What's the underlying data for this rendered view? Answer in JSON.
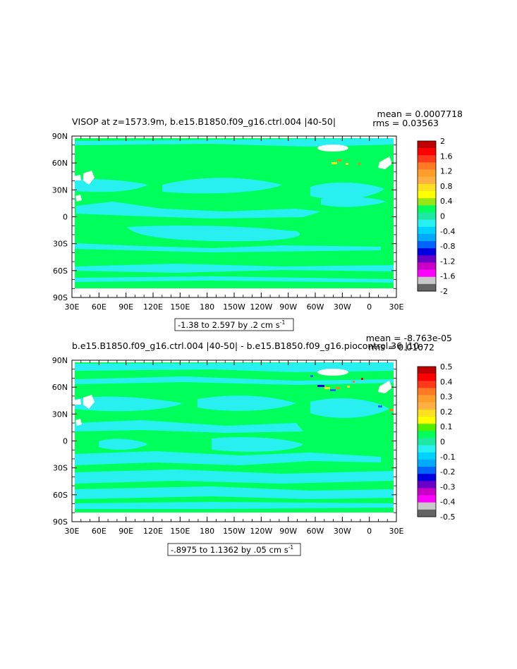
{
  "chart_data": [
    {
      "type": "heatmap",
      "title": "VISOP at z=1573.9m, b.e15.B1850.f09_g16.ctrl.004 |40-50|",
      "stats": {
        "mean": "mean = 0.0007718",
        "rms": "rms = 0.03563"
      },
      "subtitle": "-1.38 to 2.597 by .2 cm s-1",
      "subtitle_main": "-1.38 to 2.597 by .2 cm s",
      "subtitle_sup": "-1",
      "x_ticks": [
        "30E",
        "60E",
        "90E",
        "120E",
        "150E",
        "180",
        "150W",
        "120W",
        "90W",
        "60W",
        "30W",
        "0",
        "30E"
      ],
      "y_ticks": [
        "90N",
        "60N",
        "30N",
        "0",
        "30S",
        "60S",
        "90S"
      ],
      "xlim_deg_east": [
        30,
        390
      ],
      "ylim_deg_north": [
        -90,
        90
      ],
      "colorbar": {
        "labels": [
          "2",
          "1.6",
          "1.2",
          "0.8",
          "0.4",
          "0",
          "-0.4",
          "-0.8",
          "-1.2",
          "-1.6",
          "-2"
        ],
        "colors": [
          "#c00000",
          "#ff0000",
          "#ff3a1a",
          "#ff7a20",
          "#ff9f2a",
          "#ffb040",
          "#ffe020",
          "#ffff00",
          "#96e614",
          "#00ff5a",
          "#1ce8a4",
          "#28f0f0",
          "#00d2ff",
          "#00aaff",
          "#0064ff",
          "#0000e0",
          "#6a00c8",
          "#c800c8",
          "#ff00ff",
          "#c8c8c8",
          "#646464"
        ]
      }
    },
    {
      "type": "heatmap",
      "title": "b.e15.B1850.f09_g16.ctrl.004 |40-50| - b.e15.B1850.f09_g16.piocontrol.36 |10-",
      "stats": {
        "mean": "mean = -8.763e-05",
        "rms": "rms = 0.01072"
      },
      "subtitle": "-.8975 to 1.1362 by .05 cm s-1",
      "subtitle_main": "-.8975 to 1.1362 by .05 cm s",
      "subtitle_sup": "-1",
      "x_ticks": [
        "30E",
        "60E",
        "90E",
        "120E",
        "150E",
        "180",
        "150W",
        "120W",
        "90W",
        "60W",
        "30W",
        "0",
        "30E"
      ],
      "y_ticks": [
        "90N",
        "60N",
        "30N",
        "0",
        "30S",
        "60S",
        "90S"
      ],
      "xlim_deg_east": [
        30,
        390
      ],
      "ylim_deg_north": [
        -90,
        90
      ],
      "colorbar": {
        "labels": [
          "0.5",
          "0.4",
          "0.3",
          "0.2",
          "0.1",
          "0",
          "-0.1",
          "-0.2",
          "-0.3",
          "-0.4",
          "-0.5"
        ],
        "colors": [
          "#c00000",
          "#ff0000",
          "#ff3a1a",
          "#ff7a20",
          "#ff9f2a",
          "#ffb040",
          "#ffe020",
          "#ffff00",
          "#50f000",
          "#00ff5a",
          "#1ce8a4",
          "#28f0f0",
          "#00d2ff",
          "#00aaff",
          "#0064ff",
          "#0000e0",
          "#6a00c8",
          "#c800c8",
          "#ff00ff",
          "#c8c8c8",
          "#646464"
        ]
      }
    }
  ]
}
